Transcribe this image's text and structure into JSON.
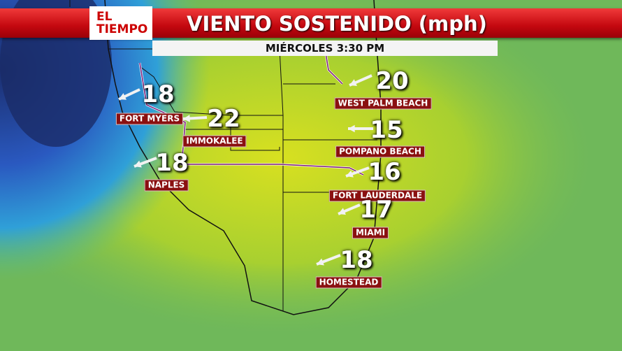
{
  "header": {
    "logo": [
      "EL",
      "TIEMPO"
    ],
    "title": "VIENTO SOSTENIDO (mph)",
    "subtitle": "MIÉRCOLES 3:30 PM"
  },
  "stations": [
    {
      "name": "FORT MYERS",
      "speed": 18
    },
    {
      "name": "IMMOKALEE",
      "speed": 22
    },
    {
      "name": "NAPLES",
      "speed": 18
    },
    {
      "name": "WEST PALM BEACH",
      "speed": 20
    },
    {
      "name": "POMPANO BEACH",
      "speed": 15
    },
    {
      "name": "FORT LAUDERDALE",
      "speed": 16
    },
    {
      "name": "MIAMI",
      "speed": 17
    },
    {
      "name": "HOMESTEAD",
      "speed": 18
    }
  ]
}
